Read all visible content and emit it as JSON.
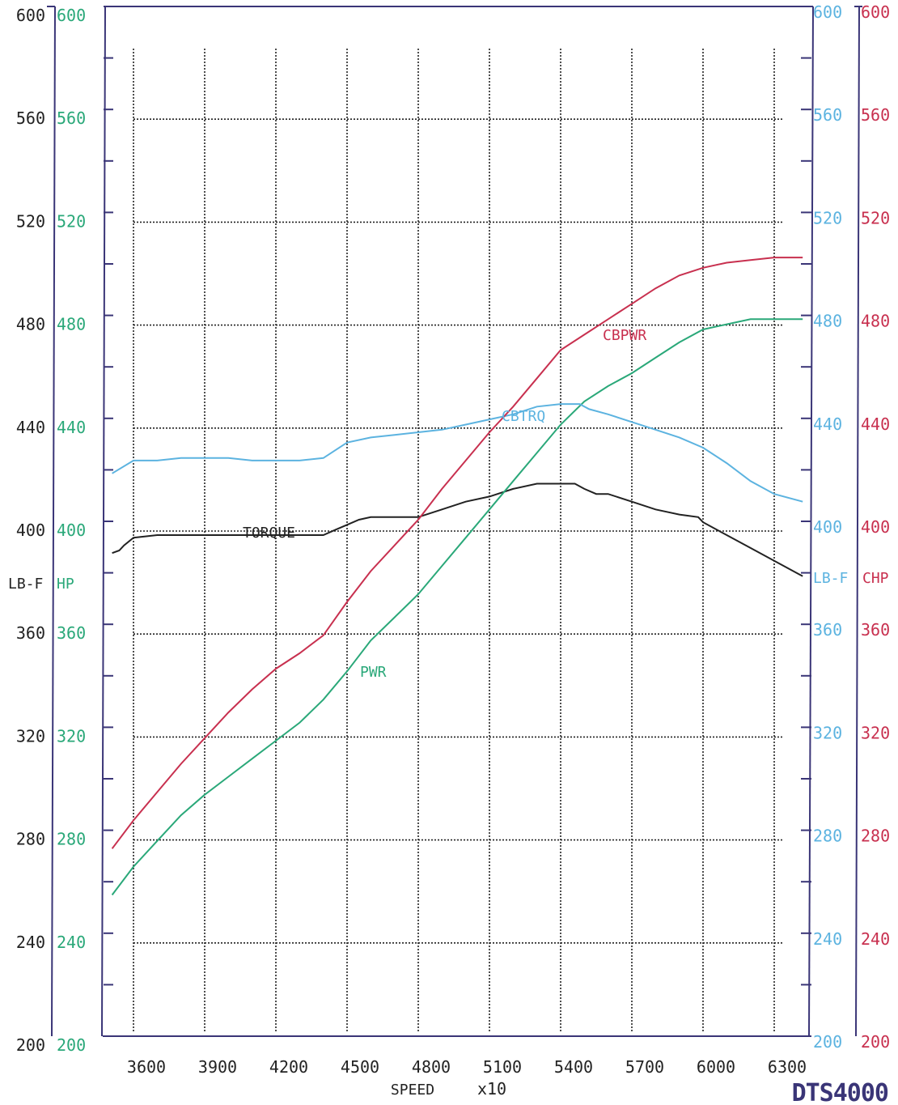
{
  "chart_data": {
    "type": "line",
    "xlabel": "SPEED",
    "xlabel_multiplier": "x10",
    "brand": "DTS4000",
    "x_ticks": [
      3600,
      3900,
      4200,
      4500,
      4800,
      5100,
      5400,
      5700,
      6000,
      6300
    ],
    "xlim": [
      3510,
      6420
    ],
    "ylim": [
      200,
      600
    ],
    "y_ticks": [
      200,
      240,
      280,
      320,
      360,
      400,
      440,
      480,
      520,
      560,
      600
    ],
    "axes": {
      "left_outer": {
        "unit": "LB-F",
        "color": "#222222"
      },
      "left_inner": {
        "unit": "HP",
        "color": "#2aa879"
      },
      "right_inner": {
        "unit": "LB-F",
        "color": "#5cb3e0"
      },
      "right_outer": {
        "unit": "CHP",
        "color": "#c8304f"
      }
    },
    "grid": true,
    "series": [
      {
        "name": "TORQUE",
        "color": "#222222",
        "x": [
          3510,
          3540,
          3560,
          3600,
          3700,
          3800,
          3900,
          4000,
          4100,
          4200,
          4300,
          4400,
          4450,
          4500,
          4550,
          4600,
          4700,
          4800,
          4900,
          5000,
          5100,
          5200,
          5300,
          5400,
          5460,
          5500,
          5550,
          5600,
          5700,
          5800,
          5900,
          5980,
          6000,
          6100,
          6200,
          6300,
          6400,
          6420
        ],
        "y": [
          393,
          394,
          396,
          399,
          400,
          400,
          400,
          400,
          400,
          400,
          400,
          400,
          402,
          404,
          406,
          407,
          407,
          407,
          410,
          413,
          415,
          418,
          420,
          420,
          420,
          418,
          416,
          416,
          413,
          410,
          408,
          407,
          405,
          400,
          395,
          390,
          385,
          384
        ]
      },
      {
        "name": "PWR",
        "color": "#2aa879",
        "x": [
          3510,
          3600,
          3700,
          3800,
          3900,
          4000,
          4100,
          4200,
          4300,
          4400,
          4500,
          4600,
          4700,
          4800,
          4900,
          5000,
          5100,
          5200,
          5300,
          5400,
          5500,
          5600,
          5700,
          5800,
          5900,
          6000,
          6100,
          6200,
          6300,
          6420
        ],
        "y": [
          260,
          271,
          281,
          291,
          299,
          306,
          313,
          320,
          327,
          336,
          347,
          359,
          368,
          377,
          388,
          399,
          410,
          421,
          432,
          443,
          452,
          458,
          463,
          469,
          475,
          480,
          482,
          484,
          484,
          484
        ]
      },
      {
        "name": "CBTRQ",
        "color": "#5cb3e0",
        "x": [
          3510,
          3600,
          3700,
          3800,
          3900,
          4000,
          4100,
          4200,
          4300,
          4400,
          4500,
          4600,
          4700,
          4800,
          4900,
          5000,
          5100,
          5200,
          5300,
          5400,
          5480,
          5520,
          5600,
          5700,
          5800,
          5900,
          6000,
          6100,
          6200,
          6300,
          6420
        ],
        "y": [
          424,
          429,
          429,
          430,
          430,
          430,
          429,
          429,
          429,
          430,
          436,
          438,
          439,
          440,
          441,
          443,
          445,
          447,
          450,
          451,
          451,
          449,
          447,
          444,
          441,
          438,
          434,
          428,
          421,
          416,
          413
        ]
      },
      {
        "name": "CBPWR",
        "color": "#c8304f",
        "x": [
          3510,
          3600,
          3700,
          3800,
          3900,
          4000,
          4100,
          4200,
          4300,
          4400,
          4500,
          4600,
          4700,
          4800,
          4900,
          5000,
          5100,
          5200,
          5300,
          5400,
          5500,
          5600,
          5700,
          5800,
          5900,
          6000,
          6100,
          6200,
          6300,
          6420
        ],
        "y": [
          278,
          289,
          300,
          311,
          321,
          331,
          340,
          348,
          354,
          361,
          374,
          386,
          396,
          406,
          418,
          429,
          440,
          450,
          461,
          472,
          478,
          484,
          490,
          496,
          501,
          504,
          506,
          507,
          508,
          508
        ]
      }
    ],
    "annotations": [
      "TORQUE",
      "PWR",
      "CBTRQ",
      "CBPWR"
    ]
  }
}
